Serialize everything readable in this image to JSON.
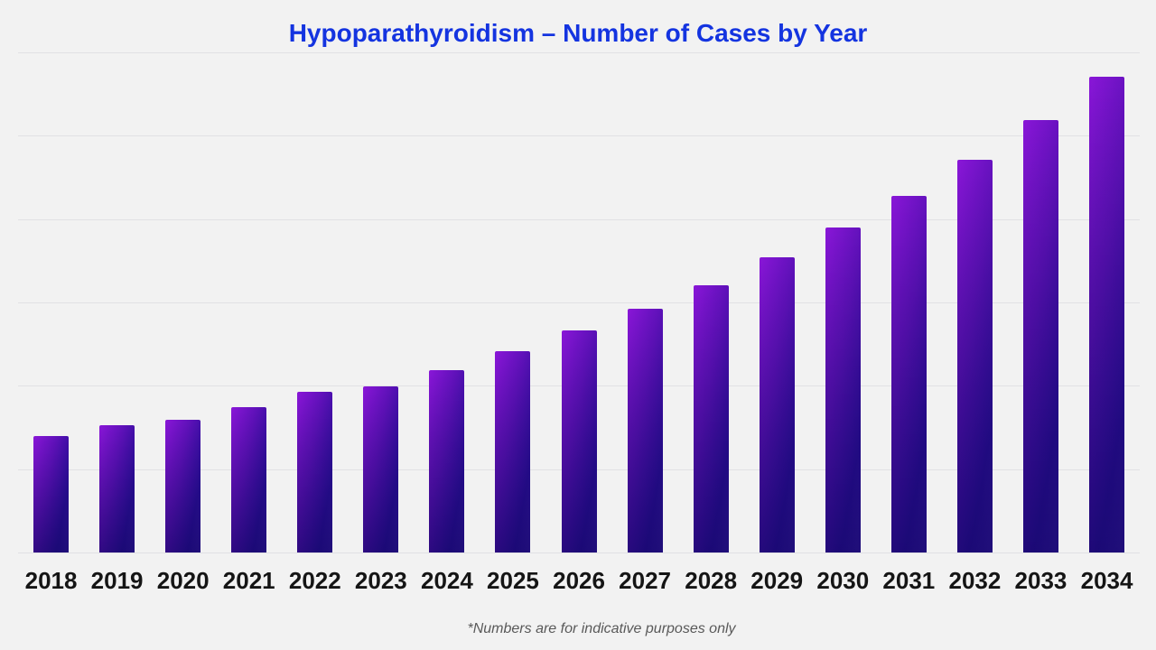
{
  "page": {
    "background_color": "#f2f2f2"
  },
  "chart": {
    "title": "Hypoparathyroidism – Number of Cases by Year",
    "title_color": "#1434e0",
    "footnote": "*Numbers are for indicative purposes only",
    "footnote_color": "#595959",
    "gridline_color": "#e1e1e4",
    "bar_gradient_start": "#8a16d8",
    "bar_gradient_end": "#140a78",
    "year_label_color": "#151515"
  },
  "chart_data": {
    "type": "bar",
    "title": "Hypoparathyroidism – Number of Cases by Year",
    "categories": [
      "2018",
      "2019",
      "2020",
      "2021",
      "2022",
      "2023",
      "2024",
      "2025",
      "2026",
      "2027",
      "2028",
      "2029",
      "2030",
      "2031",
      "2032",
      "2033",
      "2034"
    ],
    "values": [
      1.4,
      1.53,
      1.59,
      1.74,
      1.93,
      1.99,
      2.19,
      2.41,
      2.66,
      2.92,
      3.21,
      3.54,
      3.9,
      4.28,
      4.71,
      5.19,
      5.71
    ],
    "value_units": "relative units; y-axis unlabeled, one unit per horizontal gridline interval",
    "xlabel": "",
    "ylabel": "",
    "ylim": [
      0,
      6
    ],
    "grid": "horizontal gridlines at 0,1,2,3,4,5,6 (baseline included)",
    "legend": "none",
    "footnote": "*Numbers are for indicative purposes only"
  }
}
